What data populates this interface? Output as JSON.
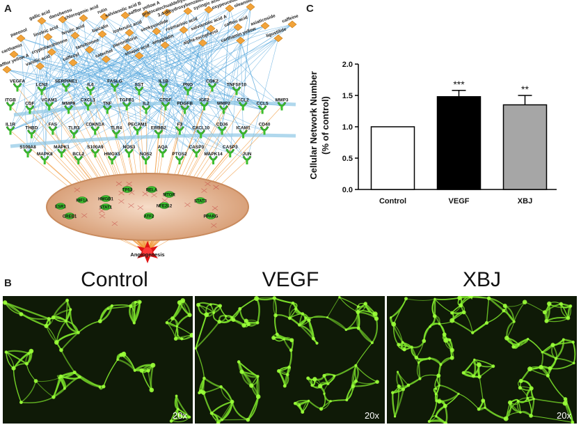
{
  "panels": {
    "a": "A",
    "b": "B",
    "c": "C"
  },
  "network": {
    "compounds": [
      "gallic acid",
      "danshensu",
      "chlorogenic acid",
      "rutin",
      "salvianolic acid B",
      "safflor yellow A",
      "protocatechualdehyde",
      "3,4-dihydroxybenzaldehyde",
      "syringic acid",
      "oxypeucedanin",
      "oleanolic acid",
      "paeonol",
      "linoleic acid",
      "ferulic acid",
      "baicalin",
      "isoferulic acid",
      "senkyunolide",
      "rosmarinic acid",
      "salvianolic acid A",
      "caffeic acid",
      "asiaticoside",
      "caffeine",
      "carthamin",
      "cryptotanshinone",
      "tanshinone",
      "paeoniflorin",
      "amygdalin",
      "alpha-tocopherol",
      "carthamin yellow",
      "ligustilide",
      "hydroxysafflor yellow A",
      "vanillic acid",
      "caffeoyl",
      "catechol",
      "sinapic acid"
    ],
    "targets_row1": [
      "VEGFA",
      "LCN2",
      "SERPINE1",
      "IL6",
      "FASLG",
      "SST",
      "IL1B",
      "PNO",
      "CDK2",
      "TNFSF10"
    ],
    "targets_row2": [
      "ITGB",
      "CDF",
      "VCAM1",
      "MMP9",
      "CXCL1",
      "TNF",
      "TGFB1",
      "IL2",
      "CTGF",
      "PDGFB",
      "IGF2",
      "MMP2",
      "CCL2",
      "CCL5",
      "MMP3"
    ],
    "targets_row3": [
      "IL1R",
      "THBD",
      "FAS",
      "TLR3",
      "CDKN1A",
      "TLR4",
      "PECAM1",
      "ERBB2",
      "F3",
      "CXCL10",
      "CD36",
      "ICAM1",
      "CD40"
    ],
    "targets_row4": [
      "S100A8",
      "MAPK8",
      "MAPK1",
      "BCL2",
      "S100A9",
      "HMOX1",
      "NOS3",
      "NOS2",
      "AQA",
      "PTGS2",
      "CASP3",
      "MAPK14",
      "CASP3",
      "JUN"
    ],
    "hub_nodes": [
      "TP53",
      "RELA",
      "HIF1A",
      "HMGB1",
      "MTOR",
      "ESR1",
      "STAT1",
      "NFE2L2",
      "STAT3",
      "CREB1",
      "ATF2",
      "PPARG"
    ],
    "outcome": "Angiogenesis"
  },
  "micrographs": [
    {
      "title": "Control",
      "magnification": "20x"
    },
    {
      "title": "VEGF",
      "magnification": "20x"
    },
    {
      "title": "XBJ",
      "magnification": "20x"
    }
  ],
  "chart_data": {
    "type": "bar",
    "categories": [
      "Control",
      "VEGF",
      "XBJ"
    ],
    "values": [
      1.0,
      1.48,
      1.35
    ],
    "errors": [
      0.0,
      0.1,
      0.15
    ],
    "significance": [
      "",
      "***",
      "**"
    ],
    "ylabel_line1": "Cellular Network Number",
    "ylabel_line2": "(% of control)",
    "ylim": [
      0,
      2.0
    ],
    "yticks": [
      "0.0",
      "0.5",
      "1.0",
      "1.5",
      "2.0"
    ],
    "ytick_values": [
      0,
      0.5,
      1.0,
      1.5,
      2.0
    ],
    "bar_fills": [
      "#ffffff",
      "#000000",
      "#a6a6a6"
    ]
  }
}
